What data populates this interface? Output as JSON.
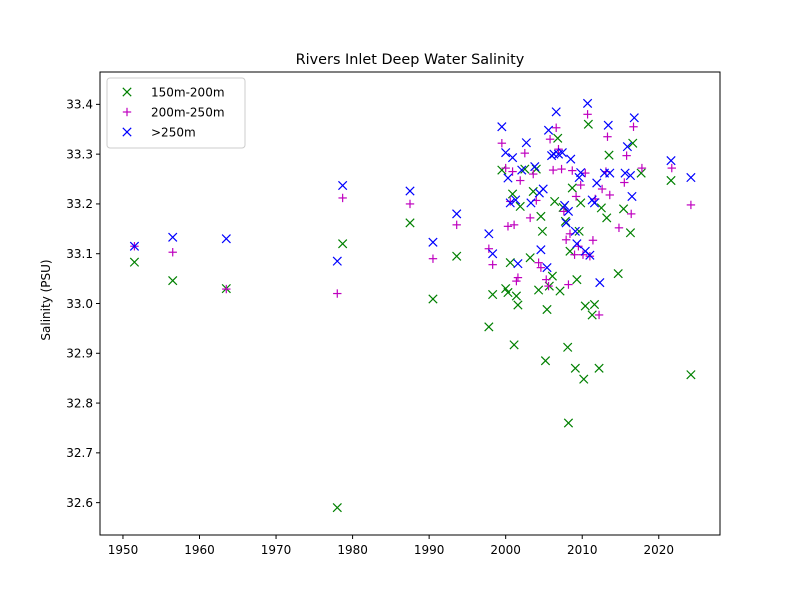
{
  "chart_data": {
    "type": "scatter",
    "title": "Rivers Inlet Deep Water Salinity",
    "xlabel": "",
    "ylabel": "Salinity (PSU)",
    "xlim": [
      1947,
      2028
    ],
    "ylim": [
      32.535,
      33.465
    ],
    "xticks": [
      1950,
      1960,
      1970,
      1980,
      1990,
      2000,
      2010,
      2020
    ],
    "yticks": [
      32.6,
      32.7,
      32.8,
      32.9,
      33.0,
      33.1,
      33.2,
      33.3,
      33.4
    ],
    "grid": false,
    "legend_position": "top-left",
    "series": [
      {
        "name": "150m-200m",
        "color": "#008000",
        "marker": "x",
        "points": [
          [
            1951.5,
            33.083
          ],
          [
            1956.5,
            33.046
          ],
          [
            1963.5,
            33.03
          ],
          [
            1978.0,
            32.59
          ],
          [
            1978.7,
            33.12
          ],
          [
            1987.5,
            33.162
          ],
          [
            1990.5,
            33.009
          ],
          [
            1993.6,
            33.095
          ],
          [
            1997.8,
            32.953
          ],
          [
            1998.3,
            33.018
          ],
          [
            1999.5,
            33.268
          ],
          [
            2000.0,
            33.03
          ],
          [
            2000.3,
            33.022
          ],
          [
            2000.6,
            33.082
          ],
          [
            2000.9,
            33.22
          ],
          [
            2001.1,
            32.917
          ],
          [
            2001.4,
            33.015
          ],
          [
            2001.6,
            32.997
          ],
          [
            2001.9,
            33.195
          ],
          [
            2002.5,
            33.27
          ],
          [
            2003.2,
            33.092
          ],
          [
            2003.6,
            33.225
          ],
          [
            2004.0,
            33.27
          ],
          [
            2004.3,
            33.027
          ],
          [
            2004.6,
            33.175
          ],
          [
            2004.8,
            33.145
          ],
          [
            2005.2,
            32.885
          ],
          [
            2005.4,
            32.988
          ],
          [
            2005.7,
            33.035
          ],
          [
            2006.1,
            33.055
          ],
          [
            2006.4,
            33.205
          ],
          [
            2006.8,
            33.332
          ],
          [
            2007.1,
            33.025
          ],
          [
            2007.5,
            33.193
          ],
          [
            2007.8,
            33.165
          ],
          [
            2008.1,
            32.912
          ],
          [
            2008.2,
            32.76
          ],
          [
            2008.4,
            33.105
          ],
          [
            2008.7,
            33.232
          ],
          [
            2009.1,
            32.87
          ],
          [
            2009.3,
            33.048
          ],
          [
            2009.6,
            33.145
          ],
          [
            2009.8,
            33.202
          ],
          [
            2010.2,
            32.848
          ],
          [
            2010.4,
            32.995
          ],
          [
            2010.8,
            33.36
          ],
          [
            2011.3,
            32.977
          ],
          [
            2011.6,
            32.998
          ],
          [
            2012.2,
            32.87
          ],
          [
            2012.5,
            33.192
          ],
          [
            2013.2,
            33.172
          ],
          [
            2013.5,
            33.298
          ],
          [
            2014.7,
            33.06
          ],
          [
            2015.4,
            33.19
          ],
          [
            2016.3,
            33.142
          ],
          [
            2016.6,
            33.322
          ],
          [
            2017.7,
            33.262
          ],
          [
            2021.6,
            33.247
          ],
          [
            2024.2,
            32.857
          ]
        ]
      },
      {
        "name": "200m-250m",
        "color": "#bf00bf",
        "marker": "+",
        "points": [
          [
            1951.5,
            33.115
          ],
          [
            1956.5,
            33.103
          ],
          [
            1963.5,
            33.029
          ],
          [
            1978.0,
            33.02
          ],
          [
            1978.7,
            33.212
          ],
          [
            1987.5,
            33.2
          ],
          [
            1990.5,
            33.09
          ],
          [
            1993.6,
            33.158
          ],
          [
            1997.8,
            33.11
          ],
          [
            1998.3,
            33.078
          ],
          [
            1999.5,
            33.322
          ],
          [
            2000.0,
            33.272
          ],
          [
            2000.3,
            33.155
          ],
          [
            2000.6,
            33.205
          ],
          [
            2000.9,
            33.265
          ],
          [
            2001.1,
            33.158
          ],
          [
            2001.4,
            33.045
          ],
          [
            2001.6,
            33.052
          ],
          [
            2001.9,
            33.247
          ],
          [
            2002.5,
            33.302
          ],
          [
            2003.2,
            33.172
          ],
          [
            2003.6,
            33.26
          ],
          [
            2004.0,
            33.207
          ],
          [
            2004.3,
            33.082
          ],
          [
            2004.6,
            33.072
          ],
          [
            2005.3,
            33.048
          ],
          [
            2005.6,
            33.035
          ],
          [
            2005.8,
            33.33
          ],
          [
            2006.2,
            33.268
          ],
          [
            2006.6,
            33.353
          ],
          [
            2006.9,
            33.31
          ],
          [
            2007.3,
            33.27
          ],
          [
            2007.6,
            33.185
          ],
          [
            2007.9,
            33.128
          ],
          [
            2008.2,
            33.038
          ],
          [
            2008.4,
            33.14
          ],
          [
            2008.7,
            33.267
          ],
          [
            2009.0,
            33.098
          ],
          [
            2009.2,
            33.215
          ],
          [
            2009.5,
            33.115
          ],
          [
            2009.8,
            33.238
          ],
          [
            2010.1,
            33.098
          ],
          [
            2010.4,
            33.262
          ],
          [
            2010.7,
            33.38
          ],
          [
            2011.0,
            33.095
          ],
          [
            2011.4,
            33.127
          ],
          [
            2011.7,
            33.21
          ],
          [
            2012.2,
            32.977
          ],
          [
            2012.6,
            33.23
          ],
          [
            2013.1,
            33.265
          ],
          [
            2013.3,
            33.335
          ],
          [
            2013.6,
            33.218
          ],
          [
            2014.8,
            33.152
          ],
          [
            2015.5,
            33.243
          ],
          [
            2015.8,
            33.297
          ],
          [
            2016.4,
            33.18
          ],
          [
            2016.7,
            33.355
          ],
          [
            2017.8,
            33.272
          ],
          [
            2021.7,
            33.272
          ],
          [
            2024.2,
            33.198
          ]
        ]
      },
      {
        "name": ">250m",
        "color": "#0000ff",
        "marker": "x",
        "points": [
          [
            1951.5,
            33.115
          ],
          [
            1956.5,
            33.133
          ],
          [
            1963.5,
            33.13
          ],
          [
            1978.0,
            33.085
          ],
          [
            1978.7,
            33.237
          ],
          [
            1987.5,
            33.226
          ],
          [
            1990.5,
            33.123
          ],
          [
            1993.6,
            33.18
          ],
          [
            1997.8,
            33.14
          ],
          [
            1998.3,
            33.1
          ],
          [
            1999.5,
            33.355
          ],
          [
            2000.0,
            33.303
          ],
          [
            2000.3,
            33.252
          ],
          [
            2000.6,
            33.202
          ],
          [
            2000.9,
            33.293
          ],
          [
            2001.3,
            33.208
          ],
          [
            2001.6,
            33.08
          ],
          [
            2002.1,
            33.268
          ],
          [
            2002.7,
            33.323
          ],
          [
            2003.3,
            33.202
          ],
          [
            2003.8,
            33.275
          ],
          [
            2004.4,
            33.222
          ],
          [
            2004.6,
            33.108
          ],
          [
            2004.9,
            33.23
          ],
          [
            2005.4,
            33.072
          ],
          [
            2005.6,
            33.348
          ],
          [
            2006.0,
            33.297
          ],
          [
            2006.3,
            33.3
          ],
          [
            2006.6,
            33.385
          ],
          [
            2006.9,
            33.3
          ],
          [
            2007.4,
            33.303
          ],
          [
            2007.7,
            33.197
          ],
          [
            2007.9,
            33.162
          ],
          [
            2008.2,
            33.185
          ],
          [
            2008.5,
            33.29
          ],
          [
            2009.1,
            33.145
          ],
          [
            2009.3,
            33.12
          ],
          [
            2009.6,
            33.253
          ],
          [
            2009.8,
            33.263
          ],
          [
            2010.4,
            33.105
          ],
          [
            2010.7,
            33.402
          ],
          [
            2011.0,
            33.097
          ],
          [
            2011.3,
            33.208
          ],
          [
            2011.6,
            33.202
          ],
          [
            2011.9,
            33.242
          ],
          [
            2012.3,
            33.042
          ],
          [
            2012.9,
            33.262
          ],
          [
            2013.4,
            33.358
          ],
          [
            2013.6,
            33.262
          ],
          [
            2015.6,
            33.262
          ],
          [
            2015.9,
            33.315
          ],
          [
            2016.3,
            33.257
          ],
          [
            2016.5,
            33.215
          ],
          [
            2016.8,
            33.373
          ],
          [
            2021.6,
            33.287
          ],
          [
            2024.2,
            33.253
          ]
        ]
      }
    ]
  }
}
